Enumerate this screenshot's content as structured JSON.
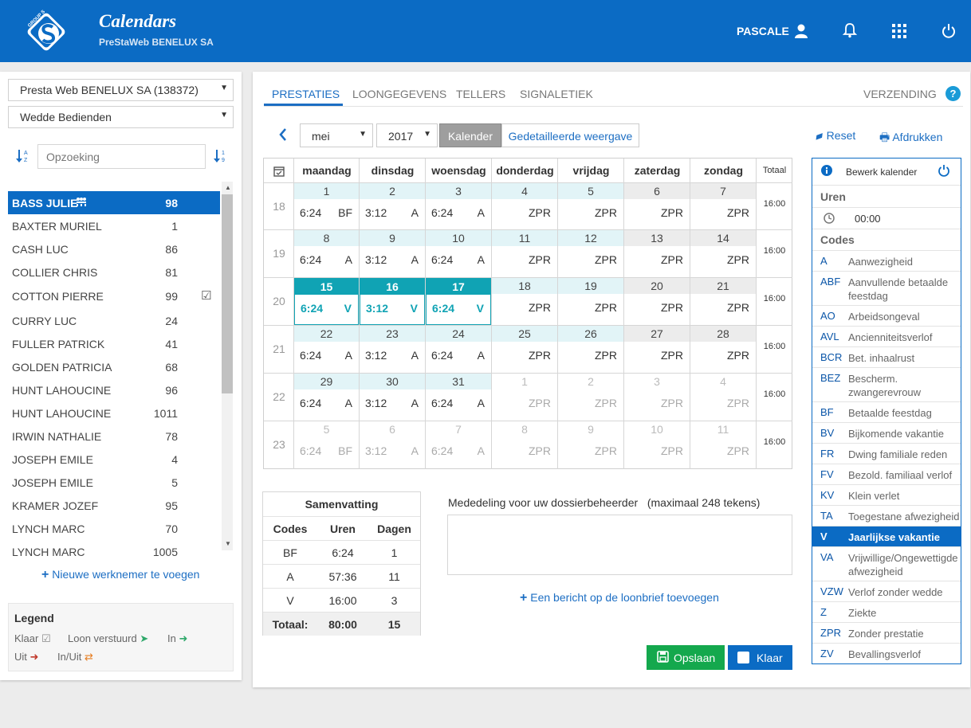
{
  "app": {
    "title": "Calendars",
    "subtitle": "PreStaWeb BENELUX SA",
    "user": "PASCALE",
    "logo_text": "GROUP S"
  },
  "left": {
    "company_select": "Presta Web BENELUX SA (138372)",
    "category_select": "Wedde Bedienden",
    "search_placeholder": "Opzoeking",
    "employees": [
      {
        "name": "BASS JULIE",
        "num": "98"
      },
      {
        "name": "BAXTER MURIEL",
        "num": "1"
      },
      {
        "name": "CASH LUC",
        "num": "86"
      },
      {
        "name": "COLLIER CHRIS",
        "num": "81"
      },
      {
        "name": "COTTON PIERRE",
        "num": "99"
      },
      {
        "name": "CURRY LUC",
        "num": "24"
      },
      {
        "name": "FULLER PATRICK",
        "num": "41"
      },
      {
        "name": "GOLDEN PATRICIA",
        "num": "68"
      },
      {
        "name": "HUNT LAHOUCINE",
        "num": "96"
      },
      {
        "name": "HUNT LAHOUCINE",
        "num": "1011"
      },
      {
        "name": "IRWIN NATHALIE",
        "num": "78"
      },
      {
        "name": "JOSEPH EMILE",
        "num": "4"
      },
      {
        "name": "JOSEPH EMILE",
        "num": "5"
      },
      {
        "name": "KRAMER JOZEF",
        "num": "95"
      },
      {
        "name": "LYNCH MARC",
        "num": "70"
      },
      {
        "name": "LYNCH MARC",
        "num": "1005"
      }
    ],
    "add_employee": "Nieuwe werknemer te voegen",
    "legend": {
      "title": "Legend",
      "klaar": "Klaar",
      "loon": "Loon verstuurd",
      "in": "In",
      "uit": "Uit",
      "inuit": "In/Uit"
    }
  },
  "tabs": {
    "prestaties": "PRESTATIES",
    "loon": "LOONGEGEVENS",
    "tellers": "TELLERS",
    "signaletiek": "SIGNALETIEK",
    "verzending": "VERZENDING"
  },
  "toolbar": {
    "month": "mei",
    "year": "2017",
    "calendar": "Kalender",
    "detail": "Gedetailleerde weergave",
    "reset": "Reset",
    "print": "Afdrukken"
  },
  "calendar": {
    "days": [
      "maandag",
      "dinsdag",
      "woensdag",
      "donderdag",
      "vrijdag",
      "zaterdag",
      "zondag"
    ],
    "total_label": "Totaal",
    "weeks": [
      {
        "wk": "18",
        "total": "16:00",
        "cells": [
          {
            "d": "1",
            "t": "6:24",
            "c": "BF",
            "s": "curr"
          },
          {
            "d": "2",
            "t": "3:12",
            "c": "A",
            "s": "curr"
          },
          {
            "d": "3",
            "t": "6:24",
            "c": "A",
            "s": "curr"
          },
          {
            "d": "4",
            "t": "",
            "c": "ZPR",
            "s": "curr"
          },
          {
            "d": "5",
            "t": "",
            "c": "ZPR",
            "s": "curr"
          },
          {
            "d": "6",
            "t": "",
            "c": "ZPR",
            "s": "wknd"
          },
          {
            "d": "7",
            "t": "",
            "c": "ZPR",
            "s": "wknd"
          }
        ]
      },
      {
        "wk": "19",
        "total": "16:00",
        "cells": [
          {
            "d": "8",
            "t": "6:24",
            "c": "A",
            "s": "curr"
          },
          {
            "d": "9",
            "t": "3:12",
            "c": "A",
            "s": "curr"
          },
          {
            "d": "10",
            "t": "6:24",
            "c": "A",
            "s": "curr"
          },
          {
            "d": "11",
            "t": "",
            "c": "ZPR",
            "s": "curr"
          },
          {
            "d": "12",
            "t": "",
            "c": "ZPR",
            "s": "curr"
          },
          {
            "d": "13",
            "t": "",
            "c": "ZPR",
            "s": "wknd"
          },
          {
            "d": "14",
            "t": "",
            "c": "ZPR",
            "s": "wknd"
          }
        ]
      },
      {
        "wk": "20",
        "total": "16:00",
        "cells": [
          {
            "d": "15",
            "t": "6:24",
            "c": "V",
            "s": "sel2"
          },
          {
            "d": "16",
            "t": "3:12",
            "c": "V",
            "s": "sel2"
          },
          {
            "d": "17",
            "t": "6:24",
            "c": "V",
            "s": "sel2"
          },
          {
            "d": "18",
            "t": "",
            "c": "ZPR",
            "s": "curr"
          },
          {
            "d": "19",
            "t": "",
            "c": "ZPR",
            "s": "curr"
          },
          {
            "d": "20",
            "t": "",
            "c": "ZPR",
            "s": "wknd"
          },
          {
            "d": "21",
            "t": "",
            "c": "ZPR",
            "s": "wknd"
          }
        ]
      },
      {
        "wk": "21",
        "total": "16:00",
        "cells": [
          {
            "d": "22",
            "t": "6:24",
            "c": "A",
            "s": "curr"
          },
          {
            "d": "23",
            "t": "3:12",
            "c": "A",
            "s": "curr"
          },
          {
            "d": "24",
            "t": "6:24",
            "c": "A",
            "s": "curr"
          },
          {
            "d": "25",
            "t": "",
            "c": "ZPR",
            "s": "curr"
          },
          {
            "d": "26",
            "t": "",
            "c": "ZPR",
            "s": "curr"
          },
          {
            "d": "27",
            "t": "",
            "c": "ZPR",
            "s": "wknd"
          },
          {
            "d": "28",
            "t": "",
            "c": "ZPR",
            "s": "wknd"
          }
        ]
      },
      {
        "wk": "22",
        "total": "16:00",
        "cells": [
          {
            "d": "29",
            "t": "6:24",
            "c": "A",
            "s": "curr"
          },
          {
            "d": "30",
            "t": "3:12",
            "c": "A",
            "s": "curr"
          },
          {
            "d": "31",
            "t": "6:24",
            "c": "A",
            "s": "curr"
          },
          {
            "d": "1",
            "t": "",
            "c": "ZPR",
            "s": "other"
          },
          {
            "d": "2",
            "t": "",
            "c": "ZPR",
            "s": "other"
          },
          {
            "d": "3",
            "t": "",
            "c": "ZPR",
            "s": "other"
          },
          {
            "d": "4",
            "t": "",
            "c": "ZPR",
            "s": "other"
          }
        ]
      },
      {
        "wk": "23",
        "total": "16:00",
        "cells": [
          {
            "d": "5",
            "t": "6:24",
            "c": "BF",
            "s": "other"
          },
          {
            "d": "6",
            "t": "3:12",
            "c": "A",
            "s": "other"
          },
          {
            "d": "7",
            "t": "6:24",
            "c": "A",
            "s": "other"
          },
          {
            "d": "8",
            "t": "",
            "c": "ZPR",
            "s": "other"
          },
          {
            "d": "9",
            "t": "",
            "c": "ZPR",
            "s": "other"
          },
          {
            "d": "10",
            "t": "",
            "c": "ZPR",
            "s": "other"
          },
          {
            "d": "11",
            "t": "",
            "c": "ZPR",
            "s": "other"
          }
        ]
      }
    ]
  },
  "summary": {
    "title": "Samenvatting",
    "headers": [
      "Codes",
      "Uren",
      "Dagen"
    ],
    "rows": [
      [
        "BF",
        "6:24",
        "1"
      ],
      [
        "A",
        "57:36",
        "11"
      ],
      [
        "V",
        "16:00",
        "3"
      ]
    ],
    "total": [
      "Totaal:",
      "80:00",
      "15"
    ]
  },
  "note": {
    "label": "Mededeling voor uw dossierbeheerder",
    "max": "(maximaal 248 tekens)",
    "add": "Een bericht op de loonbrief toevoegen"
  },
  "buttons": {
    "save": "Opslaan",
    "done": "Klaar"
  },
  "codes_panel": {
    "title": "Bewerk kalender",
    "hours_label": "Uren",
    "time": "00:00",
    "codes_label": "Codes",
    "items": [
      {
        "code": "A",
        "name": "Aanwezigheid"
      },
      {
        "code": "ABF",
        "name": "Aanvullende betaalde feestdag"
      },
      {
        "code": "AO",
        "name": "Arbeidsongeval"
      },
      {
        "code": "AVL",
        "name": "Ancienniteitsverlof"
      },
      {
        "code": "BCR",
        "name": "Bet. inhaalrust"
      },
      {
        "code": "BEZ",
        "name": "Bescherm. zwangerevrouw"
      },
      {
        "code": "BF",
        "name": "Betaalde feestdag"
      },
      {
        "code": "BV",
        "name": "Bijkomende vakantie"
      },
      {
        "code": "FR",
        "name": "Dwing familiale reden"
      },
      {
        "code": "FV",
        "name": "Bezold. familiaal verlof"
      },
      {
        "code": "KV",
        "name": "Klein verlet"
      },
      {
        "code": "TA",
        "name": "Toegestane afwezigheid"
      },
      {
        "code": "V",
        "name": "Jaarlijkse vakantie"
      },
      {
        "code": "VA",
        "name": "Vrijwillige/Ongewettigde afwezigheid"
      },
      {
        "code": "VZW",
        "name": "Verlof zonder wedde"
      },
      {
        "code": "Z",
        "name": "Ziekte"
      },
      {
        "code": "ZPR",
        "name": "Zonder prestatie"
      },
      {
        "code": "ZV",
        "name": "Bevallingsverlof"
      }
    ]
  },
  "colors": {
    "primary": "#0b6bc4",
    "selected": "#10a3b4",
    "save": "#14a84d"
  }
}
